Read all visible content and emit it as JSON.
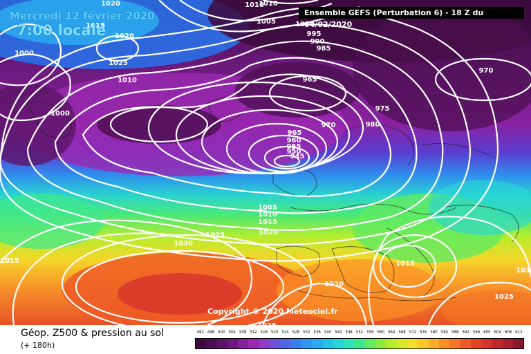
{
  "header": {
    "date": "Mercredi 12 février 2020",
    "local_time": "7:00 locale",
    "run_info": "Ensemble GEFS  (Perturbation 6)  -  18 Z du 04/02/2020"
  },
  "map": {
    "copyright": "Copyright © 2020 Meteociel.fr",
    "low_center": "945",
    "isobar_labels": [
      "1020",
      "1015",
      "1010",
      "1010",
      "1000",
      "995",
      "990",
      "985",
      "970",
      "1020",
      "1015",
      "1000",
      "1025",
      "1010",
      "965",
      "975",
      "980",
      "970",
      "965",
      "960",
      "955",
      "950",
      "945",
      "1000",
      "1005",
      "1010",
      "1015",
      "1020",
      "1025",
      "1030",
      "1025",
      "1015",
      "1015",
      "1030",
      "1025",
      "1030",
      "1005"
    ]
  },
  "footer": {
    "parameter": "Géop. Z500 & pression au sol",
    "lead_time": "(+ 180h)",
    "scale_values": [
      "492",
      "496",
      "500",
      "504",
      "508",
      "512",
      "516",
      "520",
      "524",
      "528",
      "532",
      "536",
      "540",
      "544",
      "548",
      "552",
      "556",
      "560",
      "564",
      "568",
      "572",
      "576",
      "580",
      "584",
      "588",
      "592",
      "596",
      "600",
      "604",
      "608",
      "612"
    ],
    "scale_colors": [
      "#3c0a3c",
      "#4a0f4f",
      "#5b1566",
      "#6f1a80",
      "#85219a",
      "#9a29b0",
      "#8e3bc7",
      "#7050d8",
      "#5067e6",
      "#3a7fee",
      "#2f96f2",
      "#29acf0",
      "#26c3ea",
      "#27d6d8",
      "#2fe3b8",
      "#3fe890",
      "#62ea60",
      "#8cec3d",
      "#b5ec2c",
      "#d8ea27",
      "#f2e12a",
      "#fac82c",
      "#fcad2a",
      "#fb9027",
      "#f57425",
      "#ee5b26",
      "#e34428",
      "#d6332c",
      "#c2272e",
      "#a81f2f",
      "#8a182c"
    ]
  }
}
